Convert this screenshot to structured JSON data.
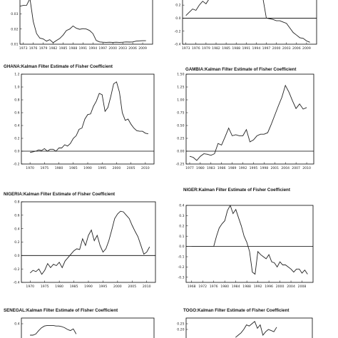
{
  "chart_data": [
    {
      "id": "p0",
      "type": "line",
      "title": "",
      "ylim": [
        0.01,
        0.04
      ],
      "yticks": [
        0.01,
        0.02,
        0.03
      ],
      "yticklabels": [
        "0.01",
        "0.02",
        "0.03"
      ],
      "xlim": [
        1972,
        2012
      ],
      "xticks": [
        1973,
        1976,
        1979,
        1982,
        1985,
        1988,
        1991,
        1994,
        1997,
        2000,
        2003,
        2006,
        2009
      ],
      "zero": null,
      "x": [
        1972,
        1973,
        1974,
        1975,
        1976,
        1977,
        1978,
        1979,
        1980,
        1981,
        1982,
        1983,
        1984,
        1985,
        1986,
        1987,
        1988,
        1989,
        1990,
        1991,
        1992,
        1993,
        1994,
        1995,
        1996,
        1997,
        1998,
        1999,
        2000,
        2001,
        2002,
        2003,
        2004,
        2005,
        2006,
        2007,
        2008,
        2009,
        2010
      ],
      "y": [
        0.035,
        0.0355,
        0.0356,
        0.04,
        0.025,
        0.017,
        0.014,
        0.0135,
        0.012,
        0.013,
        0.011,
        0.0125,
        0.0138,
        0.016,
        0.019,
        0.02,
        0.022,
        0.0205,
        0.0198,
        0.0202,
        0.02,
        0.019,
        0.017,
        0.0125,
        0.0115,
        0.0113,
        0.0112,
        0.0113,
        0.0112,
        0.0113,
        0.0112,
        0.0113,
        0.0115,
        0.0114,
        0.0115,
        0.012,
        0.0122,
        0.0123,
        0.0123
      ]
    },
    {
      "id": "p1",
      "type": "line",
      "title": "",
      "ylim": [
        -0.4,
        0.3
      ],
      "yticks": [
        -0.4,
        -0.2,
        0.0,
        0.2
      ],
      "yticklabels": [
        "-0.4",
        "-0.2",
        "0.0",
        "0.2"
      ],
      "xlim": [
        1972,
        2012
      ],
      "xticks": [
        1973,
        1976,
        1979,
        1982,
        1985,
        1988,
        1991,
        1994,
        1997,
        2000,
        2003,
        2006,
        2009
      ],
      "zero": 0,
      "x": [
        1973,
        1974,
        1975,
        1976,
        1977,
        1978,
        1979,
        1980,
        1981,
        1982,
        1983,
        1984,
        1985,
        1986,
        1987,
        1988,
        1989,
        1990,
        1991,
        1992,
        1993,
        1994,
        1995,
        1996,
        1997,
        1998,
        1999,
        2000,
        2001,
        2002,
        2003,
        2004,
        2005,
        2006,
        2007,
        2008,
        2009,
        2010
      ],
      "y": [
        0.04,
        0.09,
        0.14,
        0.12,
        0.2,
        0.26,
        0.22,
        0.3,
        0.3,
        0.3,
        0.3,
        0.3,
        0.3,
        0.3,
        0.3,
        0.3,
        0.3,
        0.3,
        0.3,
        0.3,
        0.3,
        0.3,
        0.3,
        0.3,
        0.0,
        -0.01,
        -0.02,
        -0.04,
        -0.04,
        -0.06,
        -0.08,
        -0.15,
        -0.22,
        -0.26,
        -0.3,
        -0.31,
        -0.35,
        -0.37
      ]
    },
    {
      "id": "p2",
      "type": "line",
      "title": "GHANA:Kalman Filter Estimate of Fisher Coefficient",
      "ylim": [
        -0.2,
        1.2
      ],
      "yticks": [
        -0.2,
        0.0,
        0.2,
        0.4,
        0.6,
        0.8,
        1.0,
        1.2
      ],
      "yticklabels": [
        "-0.2",
        "0.0",
        "0.2",
        "0.4",
        "0.6",
        "0.8",
        "1.0",
        "1.2"
      ],
      "xlim": [
        1967,
        2013
      ],
      "xticks": [
        1970,
        1975,
        1980,
        1985,
        1990,
        1995,
        2000,
        2005,
        2010
      ],
      "zero": 0,
      "x": [
        1970,
        1971,
        1972,
        1973,
        1974,
        1975,
        1976,
        1977,
        1978,
        1979,
        1980,
        1981,
        1982,
        1983,
        1984,
        1985,
        1986,
        1987,
        1988,
        1989,
        1990,
        1991,
        1992,
        1993,
        1994,
        1995,
        1996,
        1997,
        1998,
        1999,
        2000,
        2001,
        2002,
        2003,
        2004,
        2005,
        2006,
        2007,
        2008,
        2009,
        2010,
        2011
      ],
      "y": [
        -0.02,
        -0.01,
        0.0,
        0.02,
        0.01,
        0.04,
        0.0,
        0.03,
        0.03,
        0.0,
        0.05,
        0.05,
        0.1,
        0.08,
        0.12,
        0.2,
        0.24,
        0.34,
        0.36,
        0.5,
        0.57,
        0.58,
        0.7,
        0.78,
        0.9,
        0.88,
        0.62,
        0.68,
        0.85,
        1.05,
        1.08,
        0.92,
        0.6,
        0.48,
        0.5,
        0.42,
        0.36,
        0.32,
        0.31,
        0.31,
        0.28,
        0.27
      ]
    },
    {
      "id": "p3",
      "type": "line",
      "title": "GAMBIA:Kalman Filter Estimate of Fisher Coefficient",
      "ylim": [
        -0.25,
        1.5
      ],
      "yticks": [
        -0.25,
        0.0,
        0.25,
        0.5,
        0.75,
        1.0,
        1.25,
        1.5
      ],
      "yticklabels": [
        "-0.25",
        "0.00",
        "0.25",
        "0.50",
        "0.75",
        "1.00",
        "1.25",
        "1.50"
      ],
      "xlim": [
        1976,
        2012
      ],
      "xticks": [
        1977,
        1980,
        1983,
        1986,
        1989,
        1992,
        1995,
        1998,
        2001,
        2004,
        2007,
        2010
      ],
      "zero": 0,
      "x": [
        1977,
        1978,
        1979,
        1980,
        1981,
        1982,
        1983,
        1984,
        1985,
        1986,
        1987,
        1988,
        1989,
        1990,
        1991,
        1992,
        1993,
        1994,
        1995,
        1996,
        1997,
        1998,
        1999,
        2000,
        2001,
        2002,
        2003,
        2004,
        2005,
        2006,
        2007,
        2008,
        2009,
        2010
      ],
      "y": [
        -0.1,
        -0.12,
        -0.18,
        -0.1,
        -0.05,
        -0.06,
        -0.08,
        -0.05,
        0.15,
        0.12,
        0.28,
        0.45,
        0.3,
        0.32,
        0.3,
        0.3,
        0.42,
        0.18,
        0.22,
        0.3,
        0.33,
        0.33,
        0.36,
        0.52,
        0.7,
        0.88,
        1.05,
        1.28,
        1.15,
        0.98,
        0.83,
        0.92,
        0.82,
        0.85
      ]
    },
    {
      "id": "p4",
      "type": "line",
      "title": "NIGERIA:Kalman Filter Estimate of Fisher Coefficient",
      "ylim": [
        -0.4,
        0.8
      ],
      "yticks": [
        -0.4,
        -0.2,
        0.0,
        0.2,
        0.4,
        0.6,
        0.8
      ],
      "yticklabels": [
        "-0.4",
        "-0.2",
        "0.0",
        "0.2",
        "0.4",
        "0.6",
        "0.8"
      ],
      "xlim": [
        1967,
        2013
      ],
      "xticks": [
        1970,
        1975,
        1980,
        1985,
        1990,
        1995,
        2000,
        2005,
        2010
      ],
      "zero": 0,
      "x": [
        1970,
        1971,
        1972,
        1973,
        1974,
        1975,
        1976,
        1977,
        1978,
        1979,
        1980,
        1981,
        1982,
        1983,
        1984,
        1985,
        1986,
        1987,
        1988,
        1989,
        1990,
        1991,
        1992,
        1993,
        1994,
        1995,
        1996,
        1997,
        1998,
        1999,
        2000,
        2001,
        2002,
        2003,
        2004,
        2005,
        2006,
        2007,
        2008,
        2009,
        2010,
        2011
      ],
      "y": [
        -0.26,
        -0.22,
        -0.24,
        -0.2,
        -0.28,
        -0.22,
        -0.12,
        -0.18,
        -0.13,
        -0.15,
        -0.1,
        -0.18,
        -0.08,
        -0.03,
        0.02,
        0.07,
        0.1,
        0.09,
        0.25,
        0.15,
        0.3,
        0.38,
        0.22,
        0.3,
        0.15,
        0.05,
        0.1,
        0.22,
        0.38,
        0.55,
        0.62,
        0.66,
        0.65,
        0.6,
        0.55,
        0.45,
        0.36,
        0.28,
        0.15,
        0.02,
        0.05,
        0.13
      ]
    },
    {
      "id": "p5",
      "type": "line",
      "title": "NIGER:Kalman Filter Estimate of Fisher Coefficient",
      "ylim": [
        -0.35,
        0.4
      ],
      "yticks": [
        -0.3,
        -0.2,
        -0.1,
        0.0,
        0.1,
        0.2,
        0.3,
        0.4
      ],
      "yticklabels": [
        "-0.3",
        "-0.2",
        "-0.1",
        "0.0",
        "0.1",
        "0.2",
        "0.3",
        "0.4"
      ],
      "xlim": [
        1966,
        2012
      ],
      "xticks": [
        1968,
        1972,
        1976,
        1980,
        1984,
        1988,
        1992,
        1996,
        2000,
        2004,
        2008
      ],
      "zero": 0,
      "x": [
        1968,
        1969,
        1970,
        1971,
        1972,
        1973,
        1974,
        1975,
        1976,
        1977,
        1978,
        1979,
        1980,
        1981,
        1982,
        1983,
        1984,
        1985,
        1986,
        1987,
        1988,
        1989,
        1990,
        1991,
        1992,
        1993,
        1994,
        1995,
        1996,
        1997,
        1998,
        1999,
        2000,
        2001,
        2002,
        2003,
        2004,
        2005,
        2006,
        2007,
        2008,
        2009,
        2010
      ],
      "y": [
        0.0,
        0.0,
        0.0,
        0.0,
        0.0,
        0.0,
        0.0,
        0.0,
        0.0,
        0.1,
        0.18,
        0.22,
        0.25,
        0.35,
        0.4,
        0.32,
        0.36,
        0.28,
        0.2,
        0.1,
        0.04,
        -0.05,
        -0.25,
        -0.27,
        -0.05,
        -0.08,
        -0.1,
        -0.12,
        -0.08,
        -0.15,
        -0.16,
        -0.2,
        -0.15,
        -0.18,
        -0.18,
        -0.2,
        -0.22,
        -0.25,
        -0.22,
        -0.22,
        -0.26,
        -0.23,
        -0.27
      ]
    },
    {
      "id": "p6",
      "type": "line",
      "title": "SENEGAL:Kalman Filter Estimate of Fisher Coefficient",
      "ylim": [
        0.1,
        0.5
      ],
      "yticks": [
        0.4
      ],
      "yticklabels": [
        "0.4"
      ],
      "xlim": [
        1967,
        2013
      ],
      "xticks": [],
      "zero": null,
      "x": [
        1970,
        1971,
        1972,
        1973,
        1974,
        1975,
        1976,
        1977,
        1978,
        1979,
        1980,
        1981,
        1982,
        1983,
        1984,
        1985,
        1986
      ],
      "y": [
        0.2,
        0.2,
        0.22,
        0.28,
        0.33,
        0.36,
        0.37,
        0.37,
        0.37,
        0.36,
        0.36,
        0.35,
        0.33,
        0.3,
        0.28,
        0.31,
        0.22
      ]
    },
    {
      "id": "p7",
      "type": "line",
      "title": "TOGO:Kalman Filter Estimate of Fisher Coefficient",
      "ylim": [
        0.1,
        0.3
      ],
      "yticks": [
        0.25,
        0.2
      ],
      "yticklabels": [
        "0.25",
        "0.20"
      ],
      "xlim": [
        1966,
        2012
      ],
      "xticks": [],
      "zero": null,
      "x": [
        1984,
        1985,
        1986,
        1987,
        1988,
        1989,
        1990,
        1991,
        1992,
        1993,
        1994,
        1995,
        1996,
        1997,
        1998,
        1999
      ],
      "y": [
        0.13,
        0.15,
        0.17,
        0.2,
        0.24,
        0.23,
        0.25,
        0.27,
        0.21,
        0.24,
        0.15,
        0.18,
        0.2,
        0.19,
        0.18,
        0.22
      ]
    }
  ]
}
